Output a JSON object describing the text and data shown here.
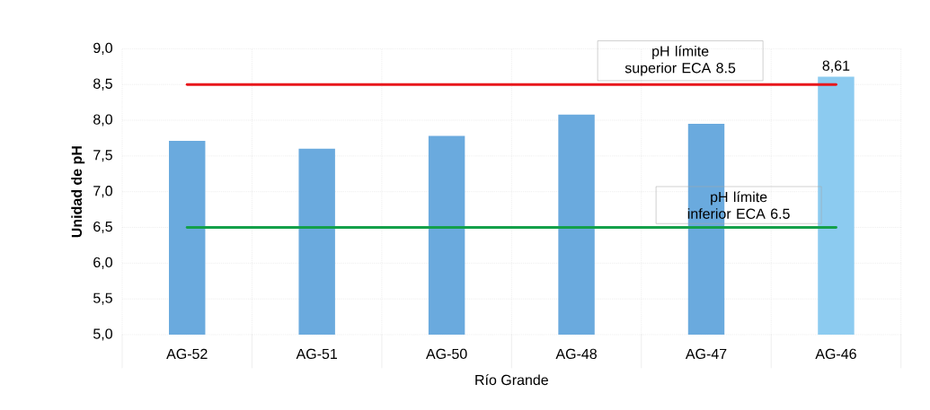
{
  "chart_data": {
    "type": "bar",
    "categories": [
      "AG-52",
      "AG-51",
      "AG-50",
      "AG-48",
      "AG-47",
      "AG-46"
    ],
    "values": [
      7.71,
      7.6,
      7.78,
      8.08,
      7.95,
      8.61
    ],
    "colors": [
      "#6aaade",
      "#6aaade",
      "#6aaade",
      "#6aaade",
      "#6aaade",
      "#8ccbf0"
    ],
    "value_labels": [
      null,
      null,
      null,
      null,
      null,
      "8,61"
    ],
    "xlabel": "Río Grande",
    "ylabel": "Unidad de pH",
    "ylim": [
      5,
      9
    ],
    "yticks": [
      {
        "value": 5,
        "label": "5,0"
      },
      {
        "value": 5.5,
        "label": "5,5"
      },
      {
        "value": 6,
        "label": "6,0"
      },
      {
        "value": 6.5,
        "label": "6,5"
      },
      {
        "value": 7,
        "label": "7,0"
      },
      {
        "value": 7.5,
        "label": "7,5"
      },
      {
        "value": 8,
        "label": "8,0"
      },
      {
        "value": 8.5,
        "label": "8,5"
      },
      {
        "value": 9,
        "label": "9,0"
      }
    ],
    "ref_lines": [
      {
        "axis": "y",
        "value": 8.5,
        "label": "pH límite superior ECA 8.5",
        "color": "#e8161b"
      },
      {
        "axis": "y",
        "value": 6.5,
        "label": "pH límite inferior ECA 6.5",
        "color": "#14a04a"
      }
    ],
    "grid": true
  }
}
